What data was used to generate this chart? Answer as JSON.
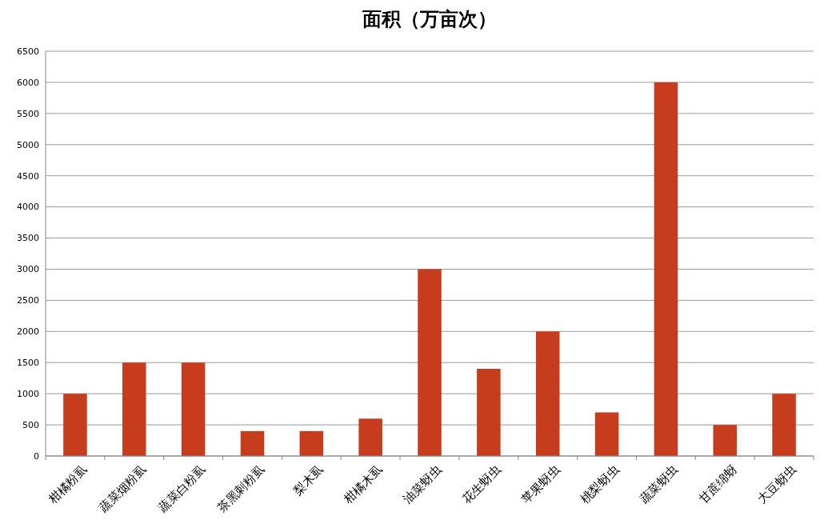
{
  "chart_data": {
    "type": "bar",
    "title": "面积（万亩次）",
    "categories": [
      "柑橘粉虱",
      "蔬菜烟粉虱",
      "蔬菜白粉虱",
      "茶黑刺粉虱",
      "梨木虱",
      "柑橘木虱",
      "油菜蚜虫",
      "花生蚜虫",
      "苹果蚜虫",
      "桃梨蚜虫",
      "蔬菜蚜虫",
      "甘蔗绵蚜",
      "大豆蚜虫"
    ],
    "values": [
      1000,
      1500,
      1500,
      400,
      400,
      600,
      3000,
      1400,
      2000,
      700,
      6000,
      500,
      1000
    ],
    "color": "#c83c1e",
    "ylim": [
      0,
      6500
    ],
    "yticks": [
      0,
      500,
      1000,
      1500,
      2000,
      2500,
      3000,
      3500,
      4000,
      4500,
      5000,
      5500,
      6000,
      6500
    ],
    "grid": "y"
  }
}
